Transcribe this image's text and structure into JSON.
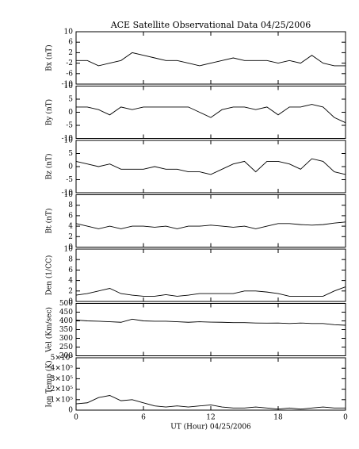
{
  "chart_data": [
    {
      "type": "line",
      "title": "ACE Satellite Observational Data  04/25/2006",
      "ylabel": "Bx (nT)",
      "color": "#000000",
      "x": [
        0,
        1,
        2,
        3,
        4,
        5,
        6,
        7,
        8,
        9,
        10,
        11,
        12,
        13,
        14,
        15,
        16,
        17,
        18,
        19,
        20,
        21,
        22,
        23,
        24
      ],
      "values": [
        -1,
        -1,
        -3,
        -2,
        -1,
        2,
        1,
        0,
        -1,
        -1,
        -2,
        -3,
        -2,
        -1,
        0,
        -1,
        -1,
        -1,
        -2,
        -1,
        -2,
        1,
        -2,
        -3,
        -3
      ],
      "xlim": [
        0,
        24
      ],
      "xticks": [
        0,
        6,
        12,
        18,
        {
          "value": 24,
          "label": "0"
        }
      ],
      "ylim": [
        -10,
        10
      ],
      "yticks": [
        -10,
        -6,
        -2,
        2,
        6,
        10
      ]
    },
    {
      "type": "line",
      "ylabel": "By (nT)",
      "color": "#000000",
      "x": [
        0,
        1,
        2,
        3,
        4,
        5,
        6,
        7,
        8,
        9,
        10,
        11,
        12,
        13,
        14,
        15,
        16,
        17,
        18,
        19,
        20,
        21,
        22,
        23,
        24
      ],
      "values": [
        2,
        2,
        1,
        -1,
        2,
        1,
        2,
        2,
        2,
        2,
        2,
        0,
        -2,
        1,
        2,
        2,
        1,
        2,
        -1,
        2,
        2,
        3,
        2,
        -2,
        -4
      ],
      "xlim": [
        0,
        24
      ],
      "xticks": [
        0,
        6,
        12,
        18,
        {
          "value": 24,
          "label": "0"
        }
      ],
      "ylim": [
        -10,
        10
      ],
      "yticks": [
        -10,
        -5,
        0,
        5,
        10
      ]
    },
    {
      "type": "line",
      "ylabel": "Bz (nT)",
      "color": "#000000",
      "x": [
        0,
        1,
        2,
        3,
        4,
        5,
        6,
        7,
        8,
        9,
        10,
        11,
        12,
        13,
        14,
        15,
        16,
        17,
        18,
        19,
        20,
        21,
        22,
        23,
        24
      ],
      "values": [
        2,
        1,
        0,
        1,
        -1,
        -1,
        -1,
        0,
        -1,
        -1,
        -2,
        -2,
        -3,
        -1,
        1,
        2,
        -2,
        2,
        2,
        1,
        -1,
        3,
        2,
        -2,
        -3
      ],
      "xlim": [
        0,
        24
      ],
      "xticks": [
        0,
        6,
        12,
        18,
        {
          "value": 24,
          "label": "0"
        }
      ],
      "ylim": [
        -10,
        10
      ],
      "yticks": [
        -10,
        -5,
        0,
        5,
        10
      ]
    },
    {
      "type": "line",
      "ylabel": "Bt (nT)",
      "color": "#000000",
      "x": [
        0,
        1,
        2,
        3,
        4,
        5,
        6,
        7,
        8,
        9,
        10,
        11,
        12,
        13,
        14,
        15,
        16,
        17,
        18,
        19,
        20,
        21,
        22,
        23,
        24
      ],
      "values": [
        4.5,
        4,
        3.5,
        4,
        3.5,
        4,
        4,
        3.8,
        4,
        3.5,
        4,
        4,
        4.2,
        4,
        3.8,
        4,
        3.5,
        4,
        4.5,
        4.5,
        4.3,
        4.2,
        4.3,
        4.6,
        4.8
      ],
      "xlim": [
        0,
        24
      ],
      "xticks": [
        0,
        6,
        12,
        18,
        {
          "value": 24,
          "label": "0"
        }
      ],
      "ylim": [
        0,
        10
      ],
      "yticks": [
        0,
        2,
        4,
        6,
        8,
        10
      ]
    },
    {
      "type": "line",
      "ylabel": "Den (1/CC)",
      "color": "#000000",
      "x": [
        0,
        1,
        2,
        3,
        4,
        5,
        6,
        7,
        8,
        9,
        10,
        11,
        12,
        13,
        14,
        15,
        16,
        17,
        18,
        19,
        20,
        21,
        22,
        23,
        24
      ],
      "values": [
        1.2,
        1.5,
        2,
        2.5,
        1.5,
        1.2,
        1,
        1,
        1.3,
        1,
        1.2,
        1.5,
        1.5,
        1.5,
        1.5,
        2,
        2,
        1.8,
        1.5,
        1,
        1,
        1,
        1,
        2,
        2.8
      ],
      "xlim": [
        0,
        24
      ],
      "xticks": [
        0,
        6,
        12,
        18,
        {
          "value": 24,
          "label": "0"
        }
      ],
      "ylim": [
        0,
        10
      ],
      "yticks": [
        0,
        2,
        4,
        6,
        8,
        10
      ]
    },
    {
      "type": "line",
      "ylabel": "Vel (Km/sec)",
      "color": "#000000",
      "x": [
        0,
        1,
        2,
        3,
        4,
        5,
        6,
        7,
        8,
        9,
        10,
        11,
        12,
        13,
        14,
        15,
        16,
        17,
        18,
        19,
        20,
        21,
        22,
        23,
        24
      ],
      "values": [
        405,
        400,
        398,
        395,
        392,
        410,
        400,
        398,
        398,
        395,
        392,
        395,
        393,
        392,
        390,
        390,
        388,
        387,
        388,
        385,
        388,
        385,
        385,
        378,
        375
      ],
      "xlim": [
        0,
        24
      ],
      "xticks": [
        0,
        6,
        12,
        18,
        {
          "value": 24,
          "label": "0"
        }
      ],
      "ylim": [
        200,
        500
      ],
      "yticks": [
        200,
        250,
        300,
        350,
        400,
        450,
        500
      ]
    },
    {
      "type": "line",
      "ylabel": "Ion Temp (K)",
      "xlabel": "UT (Hour)  04/25/2006",
      "color": "#000000",
      "x": [
        0,
        1,
        2,
        3,
        4,
        5,
        6,
        7,
        8,
        9,
        10,
        11,
        12,
        13,
        14,
        15,
        16,
        17,
        18,
        19,
        20,
        21,
        22,
        23,
        24
      ],
      "values": [
        60000,
        70000,
        120000,
        140000,
        90000,
        100000,
        70000,
        40000,
        30000,
        40000,
        30000,
        40000,
        50000,
        30000,
        20000,
        20000,
        30000,
        20000,
        10000,
        20000,
        10000,
        20000,
        30000,
        20000,
        20000
      ],
      "xlim": [
        0,
        24
      ],
      "xticks": [
        0,
        6,
        12,
        18,
        {
          "value": 24,
          "label": "0"
        }
      ],
      "ylim": [
        0,
        500000
      ],
      "yticks": [
        0,
        {
          "value": 100000,
          "label": "1×10⁵"
        },
        {
          "value": 200000,
          "label": "2×10⁵"
        },
        {
          "value": 300000,
          "label": "3×10⁵"
        },
        {
          "value": 400000,
          "label": "4×10⁵"
        },
        {
          "value": 500000,
          "label": "5×10⁵"
        }
      ]
    }
  ]
}
